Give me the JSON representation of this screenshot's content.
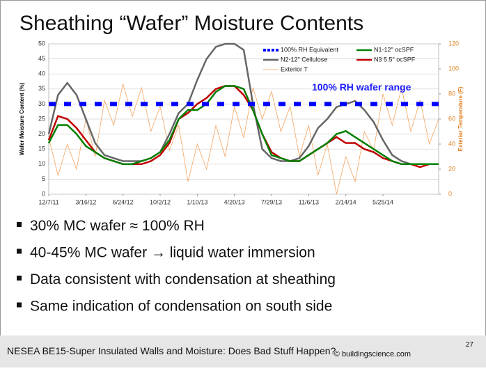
{
  "slide_title": "Sheathing “Wafer” Moisture Contents",
  "chart_data": {
    "type": "line",
    "y_label": "Wafer Moisture Content (%)",
    "y2_label": "Exterior Temperature (F)",
    "annotation": "100% RH wafer range",
    "x": [
      0,
      25,
      50,
      75,
      100,
      125,
      150,
      175,
      200,
      225,
      250,
      275,
      300,
      325,
      350,
      375,
      400,
      425,
      450,
      475,
      500,
      525,
      550,
      575,
      600,
      625,
      650,
      675,
      700,
      725,
      750,
      775,
      800,
      825,
      850,
      875,
      900,
      925,
      950,
      975,
      1000,
      1025,
      1050
    ],
    "xlim": [
      0,
      1050
    ],
    "xticks": [
      {
        "value": 0,
        "label": "12/7/11"
      },
      {
        "value": 100,
        "label": "3/16/12"
      },
      {
        "value": 200,
        "label": "6/24/12"
      },
      {
        "value": 300,
        "label": "10/2/12"
      },
      {
        "value": 400,
        "label": "1/10/13"
      },
      {
        "value": 500,
        "label": "4/20/13"
      },
      {
        "value": 600,
        "label": "7/29/13"
      },
      {
        "value": 700,
        "label": "11/6/13"
      },
      {
        "value": 800,
        "label": "2/14/14"
      },
      {
        "value": 900,
        "label": "5/25/14"
      }
    ],
    "ylim": [
      0,
      50
    ],
    "yticks": [
      0,
      5,
      10,
      15,
      20,
      25,
      30,
      35,
      40,
      45,
      50
    ],
    "y2lim": [
      0,
      120
    ],
    "y2ticks": [
      0,
      20,
      40,
      60,
      80,
      100,
      120
    ],
    "grid": true,
    "series": [
      {
        "name": "100% RH Equivalent",
        "color": "#0000ff",
        "values": [
          30,
          30,
          30,
          30,
          30,
          30,
          30,
          30,
          30,
          30,
          30,
          30,
          30,
          30,
          30,
          30,
          30,
          30,
          30,
          30,
          30,
          30,
          30,
          30,
          30,
          30,
          30,
          30,
          30,
          30,
          30,
          30,
          30,
          30,
          30,
          30,
          30,
          30,
          30,
          30,
          30,
          30,
          30
        ]
      },
      {
        "name": "N1-12\" ocSPF",
        "color": "#008000",
        "values": [
          17,
          23,
          23,
          20,
          16,
          14,
          12,
          11,
          10,
          10,
          11,
          12,
          14,
          18,
          25,
          28,
          28,
          30,
          34,
          36,
          36,
          35,
          28,
          20,
          13,
          12,
          11,
          11,
          13,
          15,
          17,
          20,
          21,
          19,
          17,
          15,
          13,
          11,
          10,
          10,
          10,
          10,
          10
        ]
      },
      {
        "name": "N2-12\" Cellulose",
        "color": "#666666",
        "values": [
          20,
          33,
          37,
          33,
          25,
          17,
          13,
          12,
          11,
          11,
          11,
          12,
          14,
          20,
          27,
          30,
          38,
          45,
          49,
          50,
          50,
          48,
          30,
          15,
          12,
          11,
          11,
          12,
          16,
          22,
          25,
          29,
          30,
          31,
          28,
          24,
          18,
          13,
          11,
          10,
          10,
          10,
          10
        ]
      },
      {
        "name": "N3 5.5\" ocSPF",
        "color": "#c00000",
        "values": [
          18,
          26,
          25,
          22,
          18,
          14,
          12,
          11,
          10,
          10,
          10,
          11,
          13,
          17,
          25,
          27,
          30,
          32,
          35,
          36,
          36,
          33,
          28,
          20,
          14,
          12,
          11,
          11,
          13,
          15,
          17,
          19,
          17,
          17,
          15,
          14,
          12,
          11,
          10,
          10,
          9,
          10,
          10
        ]
      },
      {
        "name": "Exterior T",
        "color": "#f4a460",
        "axis": "y2",
        "values": [
          45,
          15,
          40,
          20,
          60,
          30,
          75,
          55,
          88,
          62,
          85,
          50,
          70,
          35,
          55,
          10,
          40,
          20,
          55,
          30,
          70,
          45,
          85,
          60,
          82,
          50,
          70,
          30,
          55,
          15,
          40,
          0,
          30,
          10,
          50,
          35,
          80,
          55,
          85,
          50,
          75,
          40,
          60
        ]
      }
    ]
  },
  "bullets": [
    "30% MC wafer ≈ 100% RH",
    "40-45% MC wafer → liquid water immersion",
    "Data consistent with condensation at sheathing",
    "Same indication of condensation on south side"
  ],
  "footer": "NESEA BE15-Super Insulated Walls and Moisture: Does Bad Stuff Happen?",
  "copyright": "© buildingscience.com",
  "page_number": "27"
}
